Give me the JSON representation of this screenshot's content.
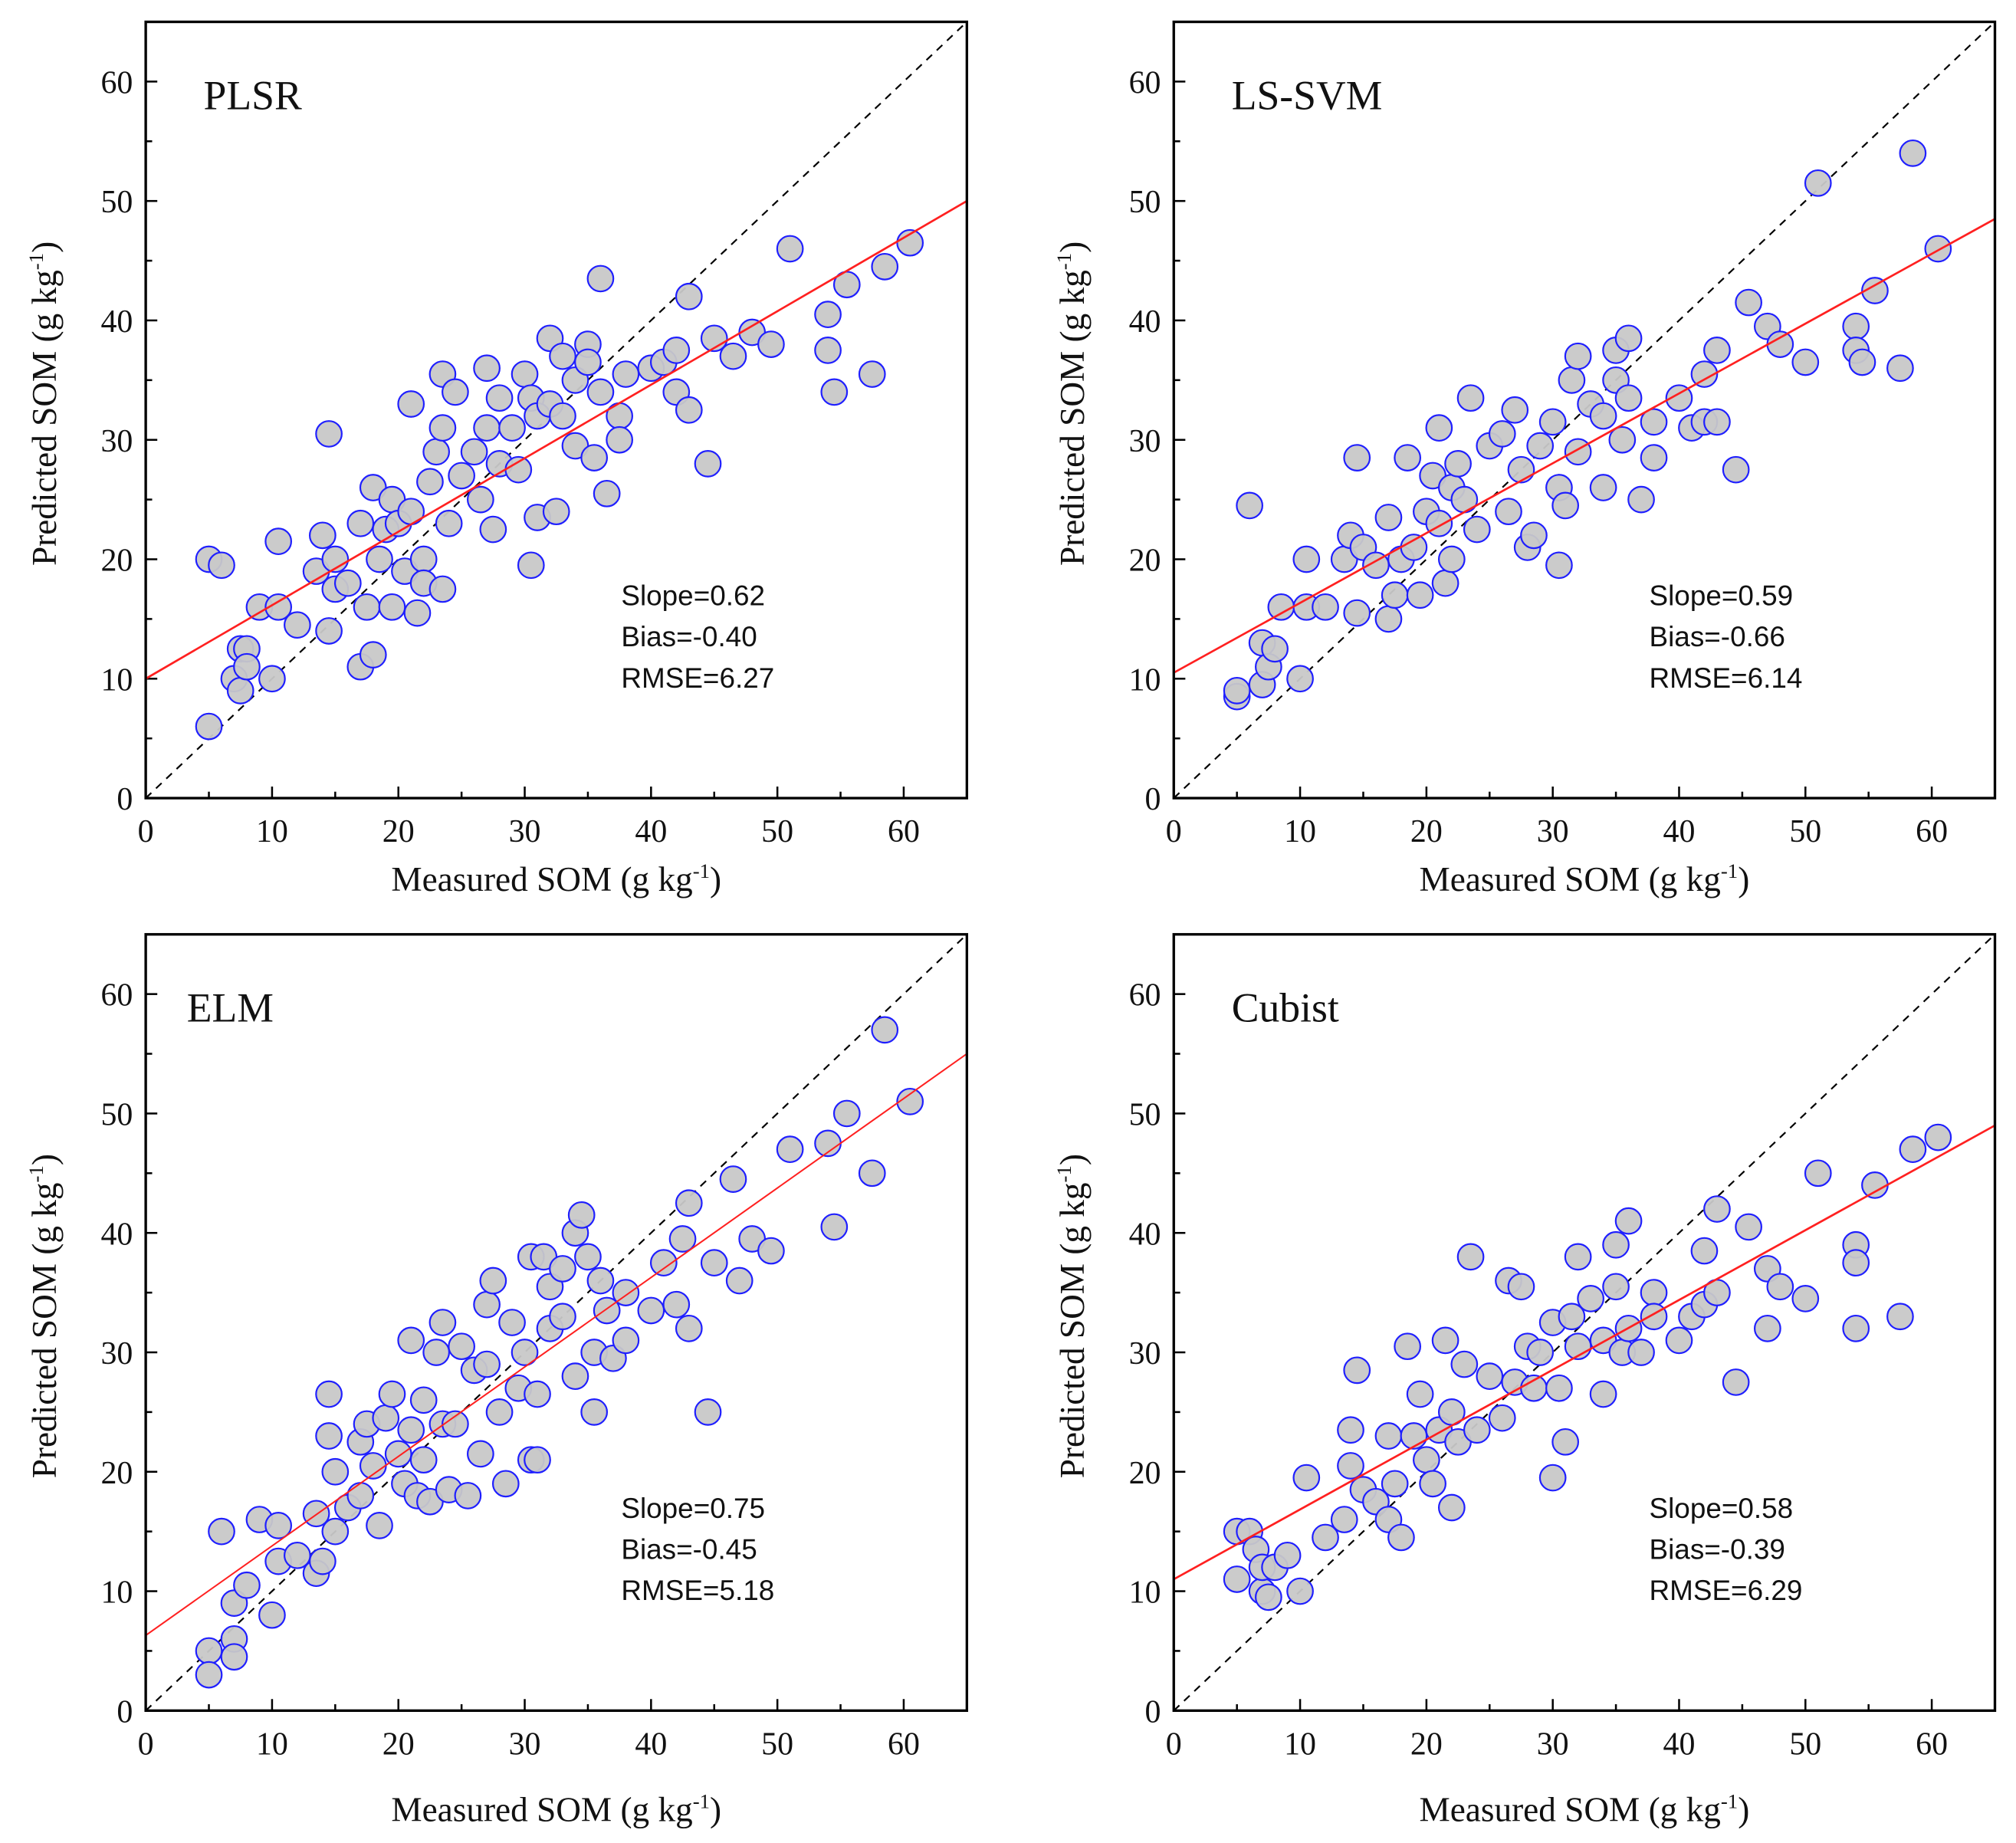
{
  "axis_common": {
    "xlabel_prefix": "Measured SOM (g kg",
    "ylabel_prefix": "Predicted SOM (g kg",
    "unit_sup": "-1",
    "label_suffix": ")",
    "ticks": [
      0,
      10,
      20,
      30,
      40,
      50,
      60
    ]
  },
  "colors": {
    "marker_fill": "#c8c8c8",
    "marker_stroke": "#1f1fff",
    "fit_line": "#ff2020",
    "identity_line": "#000000"
  },
  "chart_data": [
    {
      "type": "scatter",
      "title": "PLSR",
      "xlim": [
        0,
        65
      ],
      "ylim": [
        0,
        65
      ],
      "stats": [
        "Slope=0.62",
        "Bias=-0.40",
        "RMSE=6.27"
      ],
      "fit": [
        10,
        50
      ],
      "points": [
        [
          5,
          20
        ],
        [
          6,
          19.5
        ],
        [
          5,
          6
        ],
        [
          7,
          10
        ],
        [
          7.5,
          9
        ],
        [
          7.5,
          12.5
        ],
        [
          8,
          12.5
        ],
        [
          8,
          11
        ],
        [
          9,
          16
        ],
        [
          10,
          10
        ],
        [
          10.5,
          21.5
        ],
        [
          10.5,
          16
        ],
        [
          12,
          14.5
        ],
        [
          13.5,
          19
        ],
        [
          14,
          22
        ],
        [
          14.5,
          14
        ],
        [
          14.5,
          30.5
        ],
        [
          15,
          20
        ],
        [
          15,
          17.5
        ],
        [
          16,
          18
        ],
        [
          17,
          11
        ],
        [
          17,
          23
        ],
        [
          17.5,
          16
        ],
        [
          18,
          12
        ],
        [
          18,
          26
        ],
        [
          18.5,
          20
        ],
        [
          19,
          22.5
        ],
        [
          19.5,
          25
        ],
        [
          19.5,
          16
        ],
        [
          20,
          23
        ],
        [
          20.5,
          19
        ],
        [
          21,
          33
        ],
        [
          21,
          24
        ],
        [
          21.5,
          15.5
        ],
        [
          22,
          20
        ],
        [
          22,
          18
        ],
        [
          22.5,
          26.5
        ],
        [
          23,
          29
        ],
        [
          23.5,
          35.5
        ],
        [
          23.5,
          31
        ],
        [
          23.5,
          17.5
        ],
        [
          24,
          23
        ],
        [
          24.5,
          34
        ],
        [
          25,
          27
        ],
        [
          26,
          29
        ],
        [
          26.5,
          25
        ],
        [
          27,
          36
        ],
        [
          27,
          31
        ],
        [
          27.5,
          22.5
        ],
        [
          28,
          33.5
        ],
        [
          28,
          28
        ],
        [
          29,
          31
        ],
        [
          29.5,
          27.5
        ],
        [
          30,
          35.5
        ],
        [
          30.5,
          33.5
        ],
        [
          30.5,
          19.5
        ],
        [
          31,
          23.5
        ],
        [
          31,
          32
        ],
        [
          32,
          38.5
        ],
        [
          32,
          33
        ],
        [
          32.5,
          24
        ],
        [
          33,
          37
        ],
        [
          33,
          32
        ],
        [
          34,
          35
        ],
        [
          34,
          29.5
        ],
        [
          35,
          38
        ],
        [
          35,
          36.5
        ],
        [
          35.5,
          28.5
        ],
        [
          36,
          43.5
        ],
        [
          36,
          34
        ],
        [
          36.5,
          25.5
        ],
        [
          37.5,
          32
        ],
        [
          37.5,
          30
        ],
        [
          38,
          35.5
        ],
        [
          40,
          36
        ],
        [
          41,
          36.5
        ],
        [
          42,
          37.5
        ],
        [
          42,
          34
        ],
        [
          43,
          42
        ],
        [
          43,
          32.5
        ],
        [
          45,
          38.5
        ],
        [
          44.5,
          28
        ],
        [
          46.5,
          37
        ],
        [
          48,
          39
        ],
        [
          49.5,
          38
        ],
        [
          51,
          46
        ],
        [
          54,
          40.5
        ],
        [
          54,
          37.5
        ],
        [
          54.5,
          34
        ],
        [
          55.5,
          43
        ],
        [
          57.5,
          35.5
        ],
        [
          58.5,
          44.5
        ],
        [
          60.5,
          46.5
        ]
      ]
    },
    {
      "type": "scatter",
      "title": "LS-SVM",
      "xlim": [
        0,
        65
      ],
      "ylim": [
        0,
        65
      ],
      "stats": [
        "Slope=0.59",
        "Bias=-0.66",
        "RMSE=6.14"
      ],
      "fit": [
        10.5,
        48.5
      ],
      "points": [
        [
          5,
          8.5
        ],
        [
          5,
          9
        ],
        [
          6,
          24.5
        ],
        [
          7,
          13
        ],
        [
          7,
          9.5
        ],
        [
          7.5,
          11
        ],
        [
          8,
          12.5
        ],
        [
          8.5,
          16
        ],
        [
          10,
          10
        ],
        [
          10.5,
          20
        ],
        [
          10.5,
          16
        ],
        [
          12,
          16
        ],
        [
          13.5,
          20
        ],
        [
          14,
          22
        ],
        [
          14.5,
          28.5
        ],
        [
          14.5,
          15.5
        ],
        [
          15,
          21
        ],
        [
          16,
          19.5
        ],
        [
          17,
          23.5
        ],
        [
          17,
          15
        ],
        [
          17.5,
          17
        ],
        [
          18,
          20
        ],
        [
          18.5,
          28.5
        ],
        [
          19,
          21
        ],
        [
          19.5,
          17
        ],
        [
          20,
          24
        ],
        [
          20.5,
          27
        ],
        [
          21,
          31
        ],
        [
          21,
          23
        ],
        [
          21.5,
          18
        ],
        [
          22,
          26
        ],
        [
          22,
          20
        ],
        [
          22.5,
          28
        ],
        [
          23,
          25
        ],
        [
          23.5,
          33.5
        ],
        [
          24,
          22.5
        ],
        [
          25,
          29.5
        ],
        [
          26,
          30.5
        ],
        [
          26.5,
          24
        ],
        [
          27,
          32.5
        ],
        [
          27.5,
          27.5
        ],
        [
          28,
          21
        ],
        [
          28.5,
          22
        ],
        [
          29,
          29.5
        ],
        [
          30,
          31.5
        ],
        [
          30.5,
          26
        ],
        [
          30.5,
          19.5
        ],
        [
          31,
          24.5
        ],
        [
          31.5,
          35
        ],
        [
          32,
          37
        ],
        [
          32,
          29
        ],
        [
          33,
          33
        ],
        [
          34,
          32
        ],
        [
          34,
          26
        ],
        [
          35,
          37.5
        ],
        [
          35,
          35
        ],
        [
          35.5,
          30
        ],
        [
          36,
          38.5
        ],
        [
          36,
          33.5
        ],
        [
          37,
          25
        ],
        [
          38,
          31.5
        ],
        [
          38,
          28.5
        ],
        [
          40,
          33.5
        ],
        [
          41,
          31
        ],
        [
          42,
          35.5
        ],
        [
          42,
          31.5
        ],
        [
          43,
          37.5
        ],
        [
          43,
          31.5
        ],
        [
          44.5,
          27.5
        ],
        [
          45.5,
          41.5
        ],
        [
          47,
          39.5
        ],
        [
          48,
          38
        ],
        [
          50,
          36.5
        ],
        [
          51,
          51.5
        ],
        [
          54,
          39.5
        ],
        [
          54,
          37.5
        ],
        [
          54.5,
          36.5
        ],
        [
          55.5,
          42.5
        ],
        [
          57.5,
          36
        ],
        [
          58.5,
          54
        ],
        [
          60.5,
          46
        ]
      ]
    },
    {
      "type": "scatter",
      "title": "ELM",
      "xlim": [
        0,
        65
      ],
      "ylim": [
        0,
        65
      ],
      "stats": [
        "Slope=0.75",
        "Bias=-0.45",
        "RMSE=5.18"
      ],
      "fit": [
        6.3,
        55
      ],
      "points": [
        [
          5,
          5
        ],
        [
          5,
          3
        ],
        [
          6,
          15
        ],
        [
          7,
          6
        ],
        [
          7,
          4.5
        ],
        [
          7,
          9
        ],
        [
          8,
          10.5
        ],
        [
          9,
          16
        ],
        [
          10,
          8
        ],
        [
          10.5,
          15.5
        ],
        [
          10.5,
          12.5
        ],
        [
          12,
          13
        ],
        [
          13.5,
          11.5
        ],
        [
          13.5,
          16.5
        ],
        [
          14,
          12.5
        ],
        [
          14.5,
          26.5
        ],
        [
          14.5,
          23
        ],
        [
          15,
          20
        ],
        [
          15,
          15
        ],
        [
          16,
          17
        ],
        [
          17,
          22.5
        ],
        [
          17,
          18
        ],
        [
          17.5,
          24
        ],
        [
          18,
          20.5
        ],
        [
          18.5,
          15.5
        ],
        [
          19,
          24.5
        ],
        [
          19.5,
          26.5
        ],
        [
          20,
          21.5
        ],
        [
          20.5,
          19
        ],
        [
          21,
          31
        ],
        [
          21,
          23.5
        ],
        [
          21.5,
          18
        ],
        [
          22,
          26
        ],
        [
          22,
          21
        ],
        [
          22.5,
          17.5
        ],
        [
          23,
          30
        ],
        [
          23.5,
          32.5
        ],
        [
          23.5,
          24
        ],
        [
          24,
          18.5
        ],
        [
          24.5,
          24
        ],
        [
          25,
          30.5
        ],
        [
          25.5,
          18
        ],
        [
          26,
          28.5
        ],
        [
          26.5,
          21.5
        ],
        [
          27,
          34
        ],
        [
          27,
          29
        ],
        [
          27.5,
          36
        ],
        [
          28,
          25
        ],
        [
          28.5,
          19
        ],
        [
          29,
          32.5
        ],
        [
          29.5,
          27
        ],
        [
          30,
          30
        ],
        [
          30.5,
          38
        ],
        [
          30.5,
          21
        ],
        [
          31,
          26.5
        ],
        [
          31,
          21
        ],
        [
          31.5,
          38
        ],
        [
          32,
          35.5
        ],
        [
          32,
          32
        ],
        [
          33,
          37
        ],
        [
          33,
          33
        ],
        [
          34,
          40
        ],
        [
          34,
          28
        ],
        [
          34.5,
          41.5
        ],
        [
          35,
          38
        ],
        [
          35.5,
          30
        ],
        [
          35.5,
          25
        ],
        [
          36,
          36
        ],
        [
          36.5,
          33.5
        ],
        [
          37,
          29.5
        ],
        [
          38,
          35
        ],
        [
          38,
          31
        ],
        [
          40,
          33.5
        ],
        [
          41,
          37.5
        ],
        [
          42,
          34
        ],
        [
          42.5,
          39.5
        ],
        [
          43,
          42.5
        ],
        [
          43,
          32
        ],
        [
          44.5,
          25
        ],
        [
          45,
          37.5
        ],
        [
          46.5,
          44.5
        ],
        [
          47,
          36
        ],
        [
          48,
          39.5
        ],
        [
          49.5,
          38.5
        ],
        [
          51,
          47
        ],
        [
          54,
          47.5
        ],
        [
          54.5,
          40.5
        ],
        [
          55.5,
          50
        ],
        [
          57.5,
          45
        ],
        [
          58.5,
          57
        ],
        [
          60.5,
          51
        ]
      ]
    },
    {
      "type": "scatter",
      "title": "Cubist",
      "xlim": [
        0,
        65
      ],
      "ylim": [
        0,
        65
      ],
      "stats": [
        "Slope=0.58",
        "Bias=-0.39",
        "RMSE=6.29"
      ],
      "fit": [
        11,
        49
      ],
      "points": [
        [
          5,
          15
        ],
        [
          5,
          11
        ],
        [
          6,
          15
        ],
        [
          6.5,
          13.5
        ],
        [
          7,
          10
        ],
        [
          7,
          12
        ],
        [
          7.5,
          9.5
        ],
        [
          8,
          12
        ],
        [
          9,
          13
        ],
        [
          10,
          10
        ],
        [
          10.5,
          19.5
        ],
        [
          12,
          14.5
        ],
        [
          13.5,
          16
        ],
        [
          14,
          23.5
        ],
        [
          14,
          20.5
        ],
        [
          14.5,
          28.5
        ],
        [
          15,
          18.5
        ],
        [
          16,
          17.5
        ],
        [
          17,
          23
        ],
        [
          17,
          16
        ],
        [
          17.5,
          19
        ],
        [
          18,
          14.5
        ],
        [
          18.5,
          30.5
        ],
        [
          19,
          23
        ],
        [
          19.5,
          26.5
        ],
        [
          20,
          21
        ],
        [
          20.5,
          19
        ],
        [
          21,
          23.5
        ],
        [
          21.5,
          31
        ],
        [
          22,
          25
        ],
        [
          22,
          17
        ],
        [
          22.5,
          22.5
        ],
        [
          23,
          29
        ],
        [
          23.5,
          38
        ],
        [
          24,
          23.5
        ],
        [
          25,
          28
        ],
        [
          26,
          24.5
        ],
        [
          26.5,
          36
        ],
        [
          27,
          27.5
        ],
        [
          27.5,
          35.5
        ],
        [
          28,
          30.5
        ],
        [
          28.5,
          27
        ],
        [
          29,
          30
        ],
        [
          30,
          32.5
        ],
        [
          30,
          19.5
        ],
        [
          30.5,
          27
        ],
        [
          31,
          22.5
        ],
        [
          31.5,
          33
        ],
        [
          32,
          38
        ],
        [
          32,
          30.5
        ],
        [
          33,
          34.5
        ],
        [
          34,
          31
        ],
        [
          34,
          26.5
        ],
        [
          35,
          35.5
        ],
        [
          35,
          39
        ],
        [
          35.5,
          30
        ],
        [
          36,
          41
        ],
        [
          36,
          32
        ],
        [
          37,
          30
        ],
        [
          38,
          35
        ],
        [
          38,
          33
        ],
        [
          40,
          31
        ],
        [
          41,
          33
        ],
        [
          42,
          38.5
        ],
        [
          42,
          34
        ],
        [
          43,
          42
        ],
        [
          43,
          35
        ],
        [
          44.5,
          27.5
        ],
        [
          45.5,
          40.5
        ],
        [
          47,
          37
        ],
        [
          47,
          32
        ],
        [
          48,
          35.5
        ],
        [
          50,
          34.5
        ],
        [
          51,
          45
        ],
        [
          54,
          39
        ],
        [
          54,
          37.5
        ],
        [
          54,
          32
        ],
        [
          55.5,
          44
        ],
        [
          57.5,
          33
        ],
        [
          58.5,
          47
        ],
        [
          60.5,
          48
        ]
      ]
    }
  ]
}
